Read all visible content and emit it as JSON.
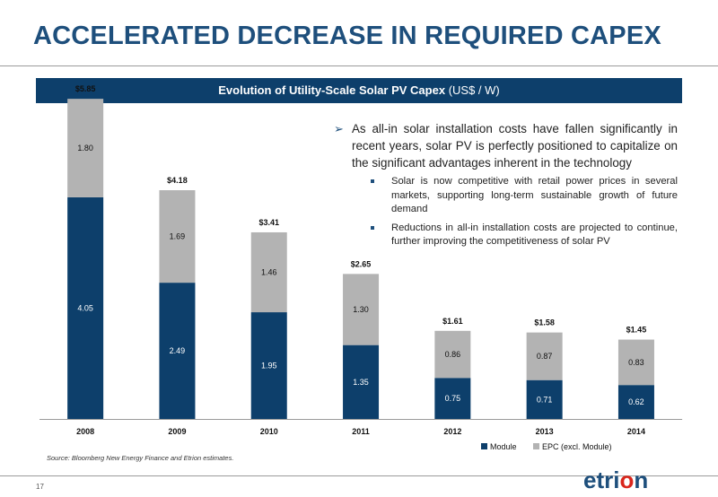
{
  "title": "ACCELERATED DECREASE IN REQUIRED CAPEX",
  "banner": {
    "title": "Evolution of Utility-Scale Solar PV Capex",
    "unit": "(US$ / W)"
  },
  "chart_data": {
    "type": "bar",
    "stacked": true,
    "categories": [
      "2008",
      "2009",
      "2010",
      "2011",
      "2012",
      "2013",
      "2014"
    ],
    "series": [
      {
        "name": "Module",
        "color": "#0d3f6b",
        "values": [
          4.05,
          2.49,
          1.95,
          1.35,
          0.75,
          0.71,
          0.62
        ],
        "labels": [
          "4.05",
          "2.49",
          "1.95",
          "1.35",
          "0.75",
          "0.71",
          "0.62"
        ]
      },
      {
        "name": "EPC (excl. Module)",
        "color": "#b3b3b3",
        "values": [
          1.8,
          1.69,
          1.46,
          1.3,
          0.86,
          0.87,
          0.83
        ],
        "labels": [
          "1.80",
          "1.69",
          "1.46",
          "1.30",
          "0.86",
          "0.87",
          "0.83"
        ]
      }
    ],
    "totals": [
      5.85,
      4.18,
      3.41,
      2.65,
      1.61,
      1.58,
      1.45
    ],
    "total_labels": [
      "$5.85",
      "$4.18",
      "$3.41",
      "$2.65",
      "$1.61",
      "$1.58",
      "$1.45"
    ],
    "ylim": [
      0,
      6
    ],
    "legend_position": "bottom-right"
  },
  "bullets": {
    "main": "As all-in solar installation costs have fallen significantly in recent years, solar PV is perfectly positioned to capitalize on the significant advantages inherent in the technology",
    "subs": [
      "Solar is now competitive with retail power prices in several markets, supporting long-term sustainable growth of future demand",
      "Reductions in all-in installation costs are projected to continue, further improving the competitiveness of solar PV"
    ]
  },
  "source": "Source: Bloomberg New Energy Finance and Etrion estimates.",
  "page_number": "17",
  "logo": {
    "text": "etrion",
    "dot_color": "#d9261c"
  }
}
